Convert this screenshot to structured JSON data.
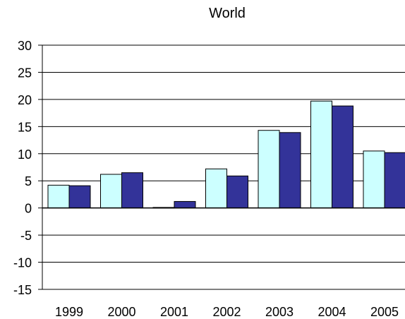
{
  "chart_data": {
    "type": "bar",
    "title": "World",
    "xlabel": "",
    "ylabel": "",
    "categories": [
      "1999",
      "2000",
      "2001",
      "2002",
      "2003",
      "2004",
      "2005"
    ],
    "series": [
      {
        "values": [
          4.2,
          6.2,
          0.1,
          7.2,
          14.3,
          19.7,
          10.5
        ],
        "color": "#ccffff"
      },
      {
        "values": [
          4.1,
          6.5,
          1.2,
          5.9,
          13.9,
          18.8,
          10.2
        ],
        "color": "#333399"
      }
    ],
    "ylim": [
      -15,
      30
    ],
    "yticks": [
      "30",
      "25",
      "20",
      "15",
      "10",
      "5",
      "0",
      "-5",
      "-10",
      "-15"
    ],
    "grid": true,
    "legend": "none",
    "colors": {
      "axis": "#000000",
      "grid": "#000000",
      "bar_border": "#000000"
    }
  }
}
